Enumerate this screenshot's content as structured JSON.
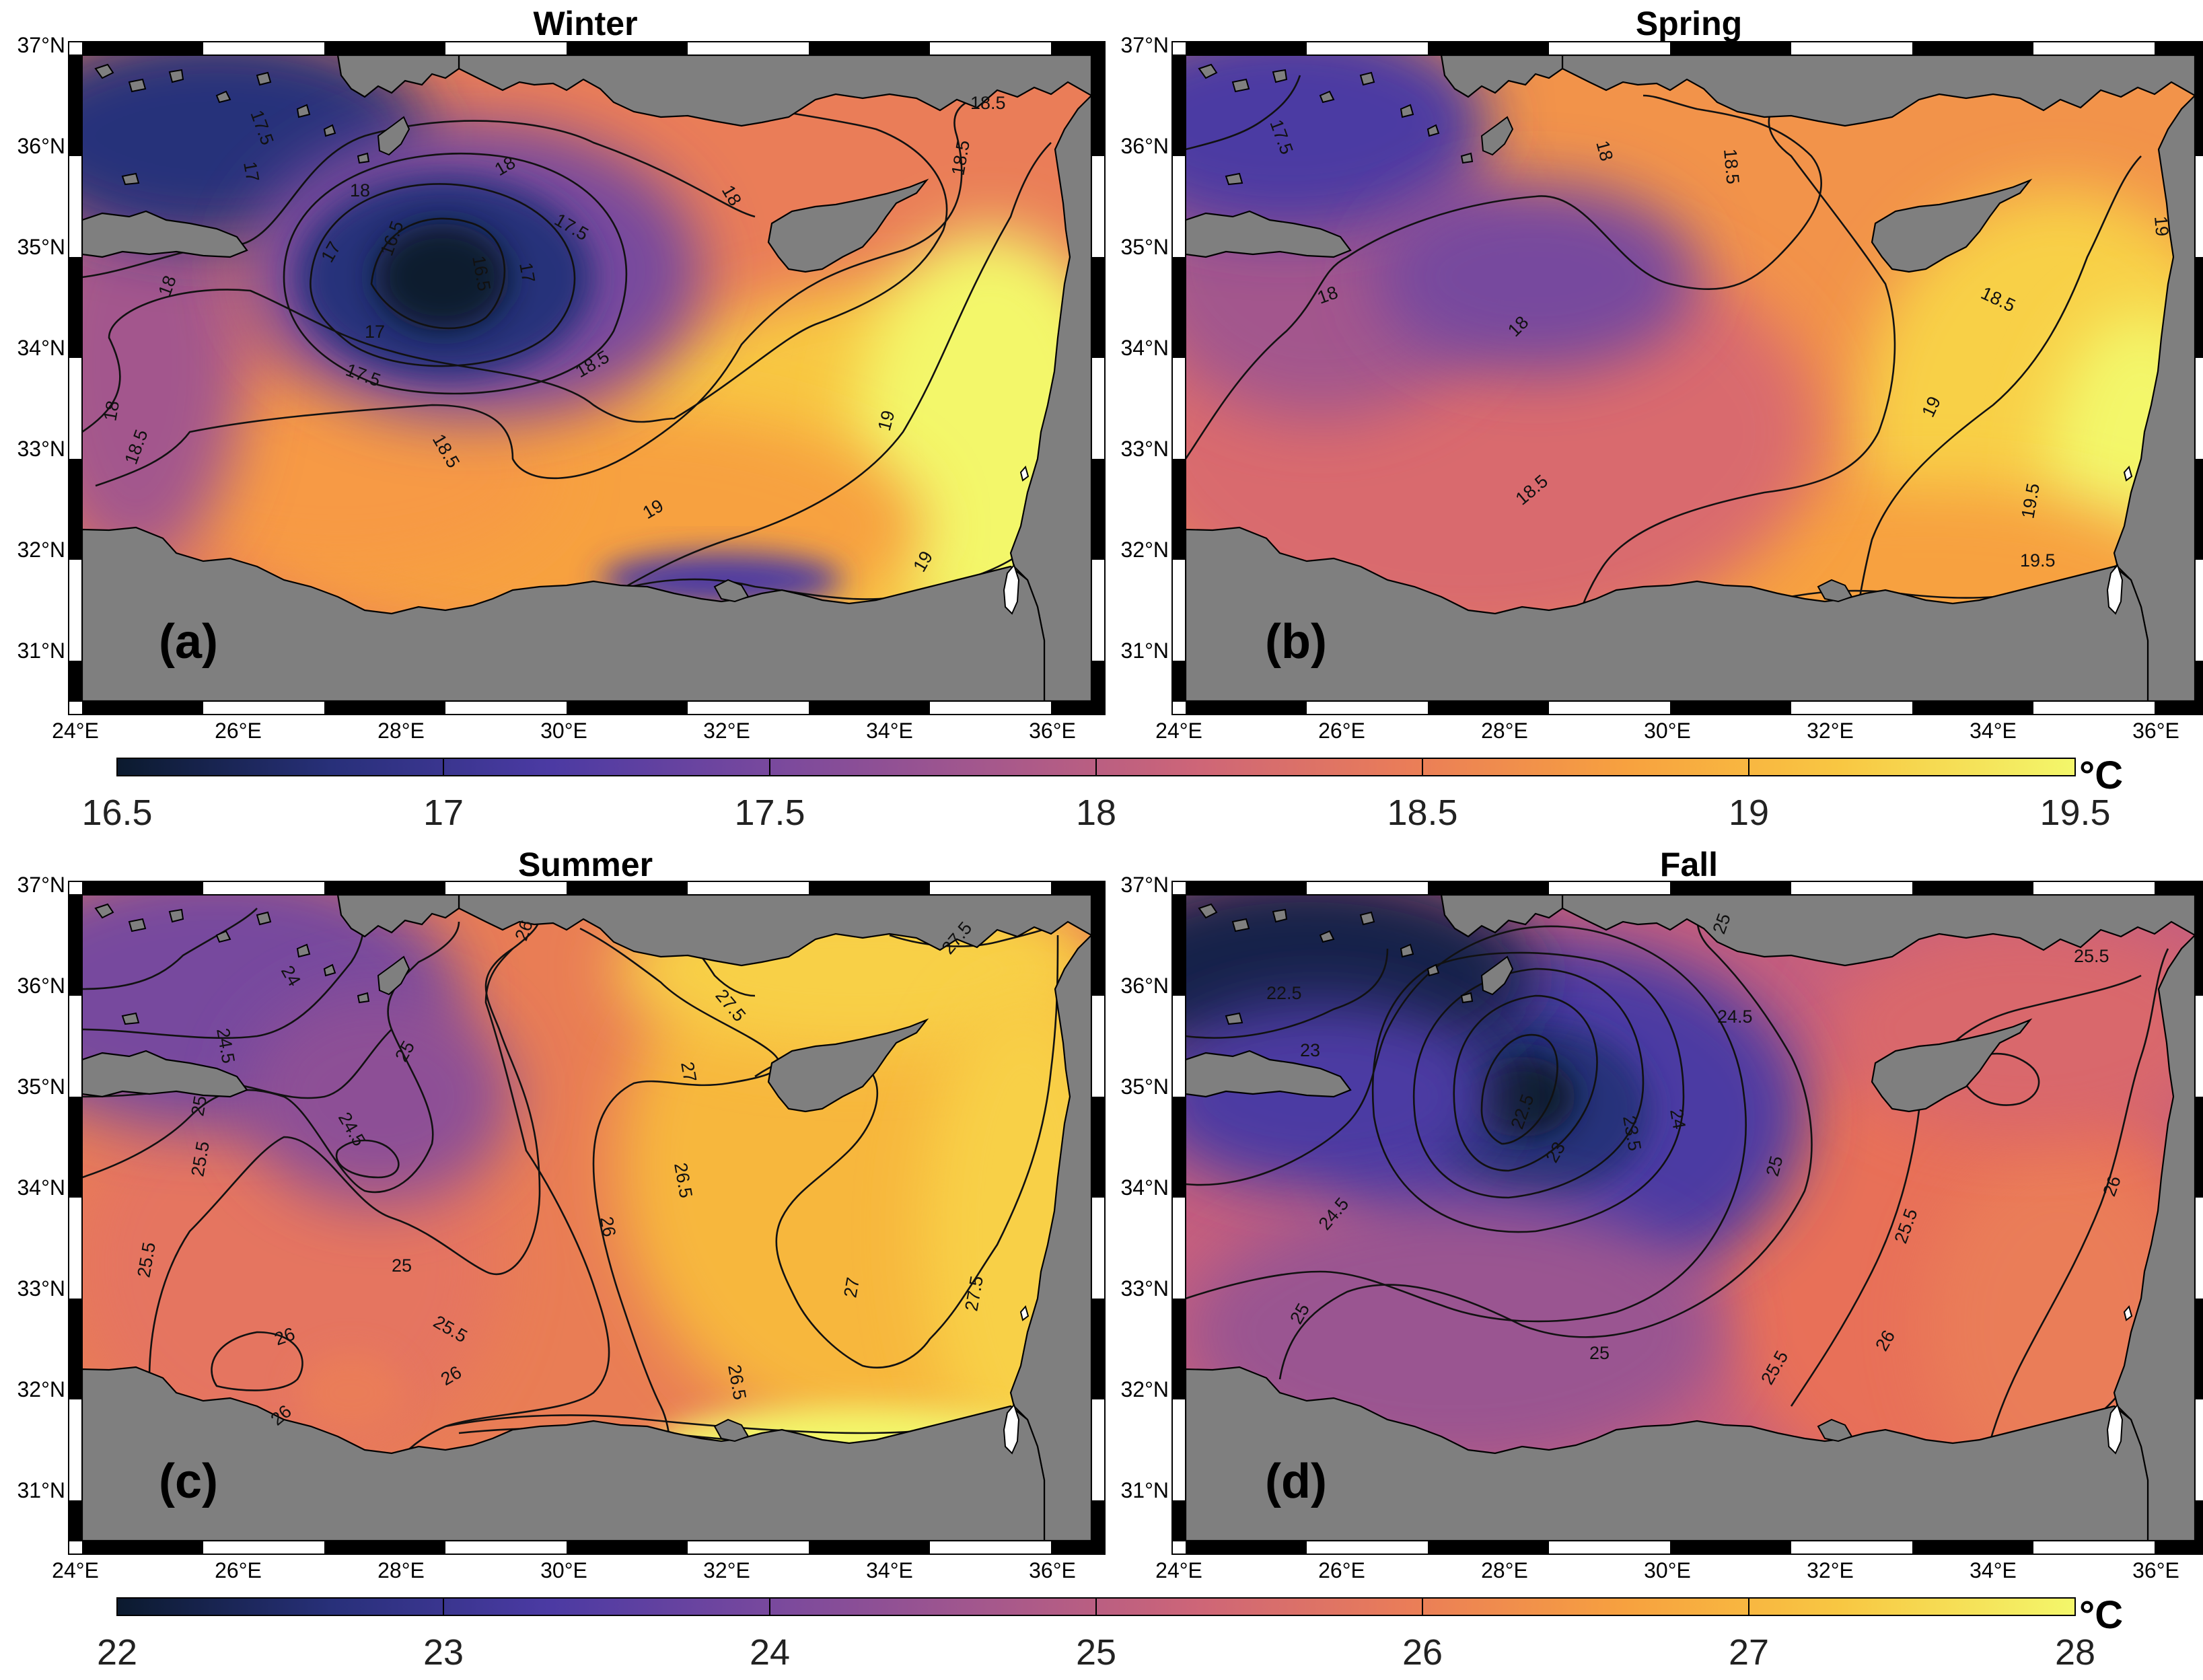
{
  "colors": {
    "land": "#7f7f7f",
    "colormap": [
      "#0b1a2e",
      "#28307a",
      "#4b3aa3",
      "#77489e",
      "#a3578d",
      "#cd6578",
      "#ea7d58",
      "#f7a13f",
      "#f8c742",
      "#f3f76b"
    ]
  },
  "panels": [
    {
      "id": "a",
      "title": "Winter",
      "label": "(a)",
      "season": "winter",
      "lat_ticks": [
        "37°N",
        "36°N",
        "35°N",
        "34°N",
        "33°N",
        "32°N",
        "31°N"
      ],
      "lon_ticks": [
        "24°E",
        "26°E",
        "28°E",
        "30°E",
        "32°E",
        "34°E",
        "36°E"
      ],
      "contour_labels": [
        "17.5",
        "17",
        "18",
        "16.5",
        "16.5",
        "17",
        "17.5",
        "17",
        "17",
        "17.5",
        "18",
        "18",
        "18",
        "18",
        "18.5",
        "18.5",
        "18.5",
        "18.5",
        "18.5",
        "19",
        "19",
        "19"
      ]
    },
    {
      "id": "b",
      "title": "Spring",
      "label": "(b)",
      "season": "spring",
      "lat_ticks": [
        "37°N",
        "36°N",
        "35°N",
        "34°N",
        "33°N",
        "32°N",
        "31°N"
      ],
      "lon_ticks": [
        "24°E",
        "26°E",
        "28°E",
        "30°E",
        "32°E",
        "34°E",
        "36°E"
      ],
      "contour_labels": [
        "17.5",
        "18",
        "18",
        "18",
        "18.5",
        "18.5",
        "18.5",
        "19",
        "19",
        "19.5",
        "19.5"
      ]
    },
    {
      "id": "c",
      "title": "Summer",
      "label": "(c)",
      "season": "summer",
      "lat_ticks": [
        "37°N",
        "36°N",
        "35°N",
        "34°N",
        "33°N",
        "32°N",
        "31°N"
      ],
      "lon_ticks": [
        "24°E",
        "26°E",
        "28°E",
        "30°E",
        "32°E",
        "34°E",
        "36°E"
      ],
      "contour_labels": [
        "24",
        "24.5",
        "25",
        "25",
        "24.5",
        "25.5",
        "25",
        "25.5",
        "25.5",
        "26",
        "26",
        "26",
        "26.5",
        "26",
        "26.5",
        "27",
        "27.5",
        "27.5",
        "27",
        "27.5",
        "26"
      ]
    },
    {
      "id": "d",
      "title": "Fall",
      "label": "(d)",
      "season": "fall",
      "lat_ticks": [
        "37°N",
        "36°N",
        "35°N",
        "34°N",
        "33°N",
        "32°N",
        "31°N"
      ],
      "lon_ticks": [
        "24°E",
        "26°E",
        "28°E",
        "30°E",
        "32°E",
        "34°E",
        "36°E"
      ],
      "contour_labels": [
        "22.5",
        "23",
        "22.5",
        "23",
        "23.5",
        "24",
        "24.5",
        "25",
        "25",
        "24.5",
        "25",
        "25",
        "25.5",
        "25.5",
        "25.5",
        "26",
        "26"
      ]
    }
  ],
  "colorbars": [
    {
      "id": "top",
      "unit": "°C",
      "ticks": [
        "16.5",
        "17",
        "17.5",
        "18",
        "18.5",
        "19",
        "19.5"
      ]
    },
    {
      "id": "bottom",
      "unit": "°C",
      "ticks": [
        "22",
        "23",
        "24",
        "25",
        "26",
        "27",
        "28"
      ]
    }
  ]
}
